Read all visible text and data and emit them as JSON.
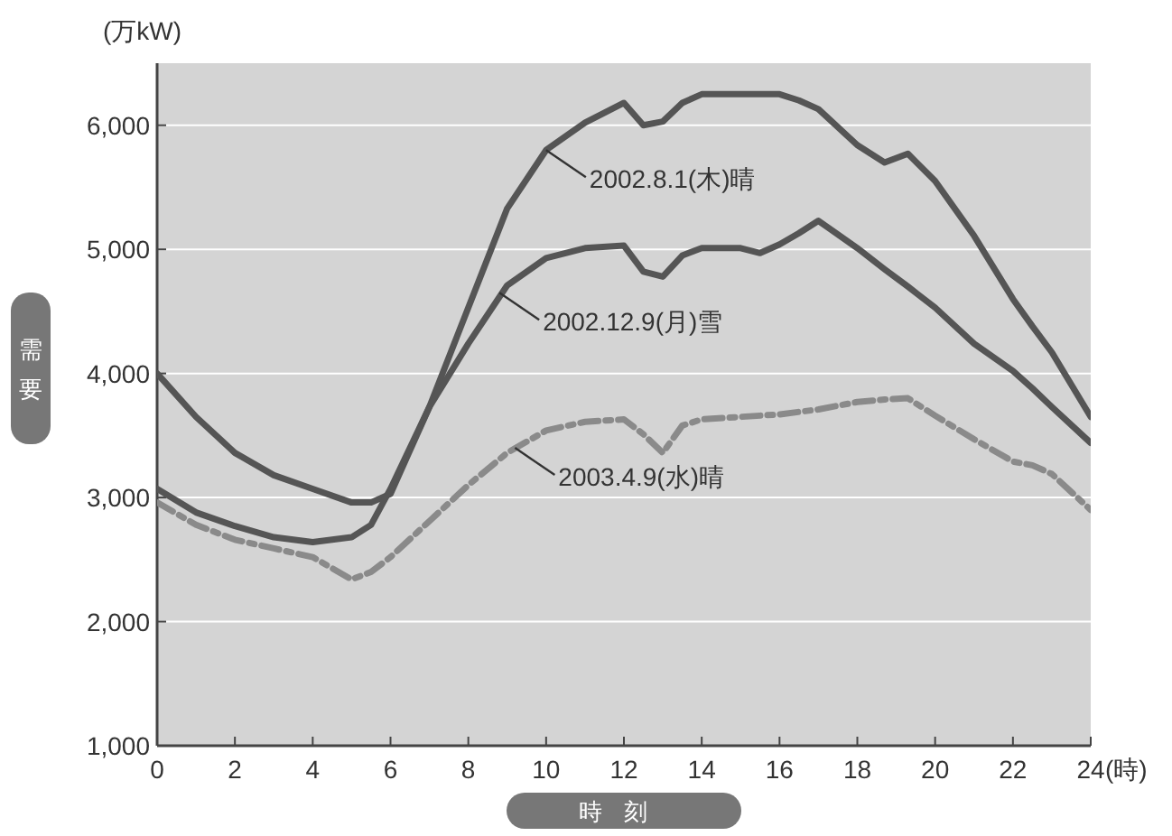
{
  "chart_data": {
    "type": "line",
    "xlabel": "時刻",
    "ylabel": "需要",
    "x": [
      0,
      1,
      2,
      3,
      4,
      5,
      5.5,
      6,
      7,
      8,
      9,
      10,
      11,
      12,
      12.5,
      13,
      13.5,
      14,
      15,
      15.5,
      16,
      16.5,
      17,
      18,
      18.7,
      19.3,
      20,
      21,
      22,
      22.5,
      23,
      24
    ],
    "series": [
      {
        "color": "#555555",
        "line_style": "solid",
        "values": [
          4000,
          3650,
          3360,
          3180,
          3070,
          2960,
          2960,
          3030,
          3730,
          4530,
          5330,
          5800,
          6020,
          6180,
          6000,
          6030,
          6180,
          6250,
          6250,
          6250,
          6250,
          6200,
          6130,
          5840,
          5700,
          5770,
          5550,
          5110,
          4600,
          4380,
          4170,
          3650
        ]
      },
      {
        "color": "#555555",
        "line_style": "solid",
        "values": [
          3070,
          2880,
          2770,
          2680,
          2640,
          2680,
          2780,
          3070,
          3730,
          4240,
          4710,
          4930,
          5010,
          5030,
          4820,
          4780,
          4950,
          5010,
          5010,
          4970,
          5040,
          5130,
          5230,
          5010,
          4840,
          4700,
          4530,
          4240,
          4020,
          3880,
          3730,
          3440
        ]
      },
      {
        "color": "#8a8a8a",
        "line_style": "dashed",
        "values": [
          2960,
          2780,
          2660,
          2590,
          2520,
          2340,
          2400,
          2520,
          2810,
          3100,
          3360,
          3540,
          3610,
          3630,
          3510,
          3360,
          3580,
          3630,
          3650,
          3660,
          3670,
          3690,
          3710,
          3770,
          3790,
          3800,
          3660,
          3470,
          3290,
          3260,
          3190,
          2900
        ]
      }
    ],
    "xlim": [
      0,
      24
    ],
    "xticks": [
      0,
      2,
      4,
      6,
      8,
      10,
      12,
      14,
      16,
      18,
      20,
      22,
      24
    ],
    "ylim": [
      1000,
      6500
    ],
    "yticks": [
      {
        "value": 1000,
        "label": "1,000"
      },
      {
        "value": 2000,
        "label": "2,000"
      },
      {
        "value": 3000,
        "label": "3,000"
      },
      {
        "value": 4000,
        "label": "4,000"
      },
      {
        "value": 5000,
        "label": "5,000"
      },
      {
        "value": 6000,
        "label": "6,000"
      }
    ],
    "grid": "y",
    "marker": "none",
    "annotations": [
      {
        "text": "2002.8.1(木)晴",
        "x": 10,
        "y": 5800
      },
      {
        "text": "2002.12.9(月)雪",
        "x": 8.8,
        "y": 4650
      },
      {
        "text": "2003.4.9(水)晴",
        "x": 9.2,
        "y": 3400
      },
      "(万kW)",
      "(時)"
    ]
  }
}
